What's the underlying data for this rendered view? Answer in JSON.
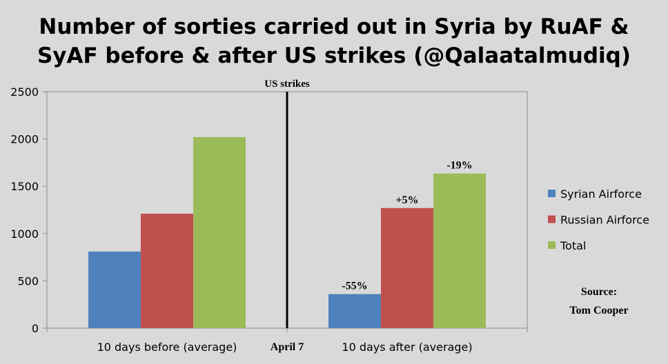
{
  "chart_data": {
    "type": "bar",
    "title": [
      "Number of sorties carried out in Syria by RuAF &",
      "SyAF before & after US strikes (@Qalaatalmudiq)"
    ],
    "categories": [
      "10 days before (average)",
      "10 days after (average)"
    ],
    "series": [
      {
        "name": "Syrian Airforce",
        "color": "#4f81bd",
        "values": [
          810,
          360
        ],
        "labels": [
          "",
          "-55%"
        ]
      },
      {
        "name": "Russian Airforce",
        "color": "#c0504d",
        "values": [
          1210,
          1270
        ],
        "labels": [
          "",
          "+5%"
        ]
      },
      {
        "name": "Total",
        "color": "#9bbb59",
        "values": [
          2020,
          1635
        ],
        "labels": [
          "",
          "-19%"
        ]
      }
    ],
    "ylim": [
      0,
      2500
    ],
    "yticks": [
      0,
      500,
      1000,
      1500,
      2000,
      2500
    ],
    "ytick_labels": [
      "0",
      "500",
      "1000",
      "1500",
      "2000",
      "2500"
    ],
    "grid": false,
    "legend_position": "right",
    "annotation": {
      "line_label": "US strikes",
      "date_label": "April 7"
    },
    "source": {
      "line1": "Source:",
      "line2": "Tom Cooper"
    }
  }
}
